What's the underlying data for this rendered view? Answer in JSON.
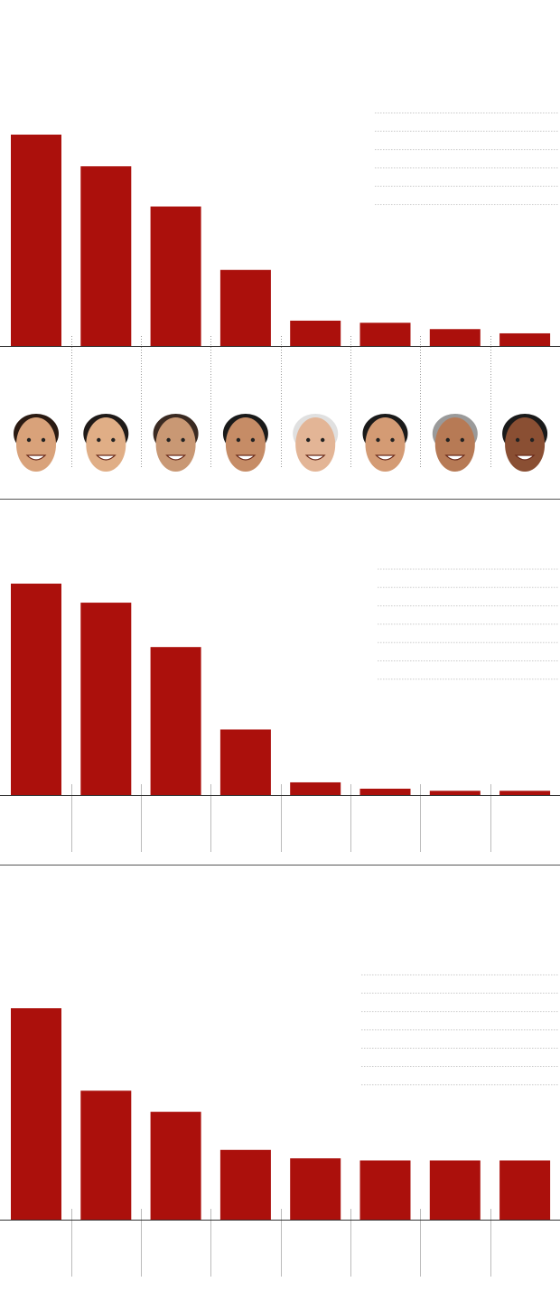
{
  "colors": {
    "bar": "#ab100c",
    "axis": "#333333",
    "divider": "#555555",
    "gridline": "#cccccc"
  },
  "chart_data": [
    {
      "type": "bar",
      "title": "",
      "categories": [
        "",
        "",
        "",
        "",
        "",
        "",
        "",
        ""
      ],
      "values": [
        100,
        85,
        66,
        36,
        12,
        11,
        8,
        6
      ],
      "separators": "dotted",
      "has_portraits": true,
      "legend_lines": 6,
      "grid": false
    },
    {
      "type": "bar",
      "title": "",
      "categories": [
        "",
        "",
        "",
        "",
        "",
        "",
        "",
        ""
      ],
      "values": [
        100,
        91,
        70,
        31,
        6,
        3,
        2,
        2
      ],
      "separators": "solid",
      "has_portraits": false,
      "legend_lines": 7,
      "grid": false
    },
    {
      "type": "bar",
      "title": "",
      "categories": [
        "",
        "",
        "",
        "",
        "",
        "",
        "",
        ""
      ],
      "values": [
        100,
        61,
        51,
        33,
        29,
        28,
        28,
        28
      ],
      "separators": "solid",
      "has_portraits": false,
      "legend_lines": 7,
      "grid": false
    }
  ],
  "portraits": [
    "portrait-1",
    "portrait-2",
    "portrait-3",
    "portrait-4",
    "portrait-5",
    "portrait-6",
    "portrait-7",
    "portrait-8"
  ]
}
